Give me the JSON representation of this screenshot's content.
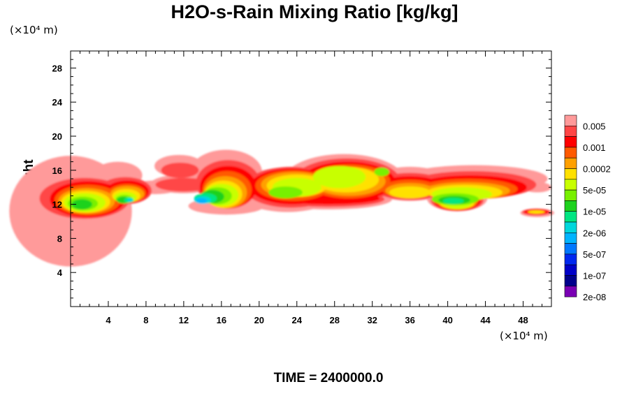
{
  "chart_data": {
    "type": "contour",
    "title": "H2O-s-Rain Mixing Ratio [kg/kg]",
    "ylabel": "Height",
    "x_unit": "(×10⁴ m)",
    "y_unit": "(×10⁴ m)",
    "footer": "TIME = 2400000.0",
    "xlim": [
      0,
      51
    ],
    "ylim": [
      0,
      30
    ],
    "xticks": [
      "4",
      "8",
      "12",
      "16",
      "20",
      "24",
      "28",
      "32",
      "36",
      "40",
      "44",
      "48"
    ],
    "yticks": [
      "4",
      "8",
      "12",
      "16",
      "20",
      "24",
      "28"
    ],
    "colorbar": {
      "labels": [
        "0.005",
        "0.001",
        "0.0002",
        "5e-05",
        "1e-05",
        "2e-06",
        "5e-07",
        "1e-07",
        "2e-08"
      ],
      "colors": [
        "#ff9a9a",
        "#ff4646",
        "#ff0000",
        "#ff5a00",
        "#ffa000",
        "#ffe100",
        "#c8ff00",
        "#78f000",
        "#1ed21e",
        "#00e682",
        "#00d7dc",
        "#00b4ff",
        "#0078ff",
        "#0028f0",
        "#0000c8",
        "#00008c",
        "#7a00b4"
      ]
    },
    "features": [
      {
        "x": 5,
        "y": 14,
        "level": 1
      },
      {
        "x": 14,
        "y": 13.5,
        "level": 5
      },
      {
        "x": 28,
        "y": 15,
        "level": 2
      },
      {
        "x": 42,
        "y": 13,
        "level": 2
      },
      {
        "x": 50,
        "y": 11,
        "level": 1
      }
    ]
  }
}
